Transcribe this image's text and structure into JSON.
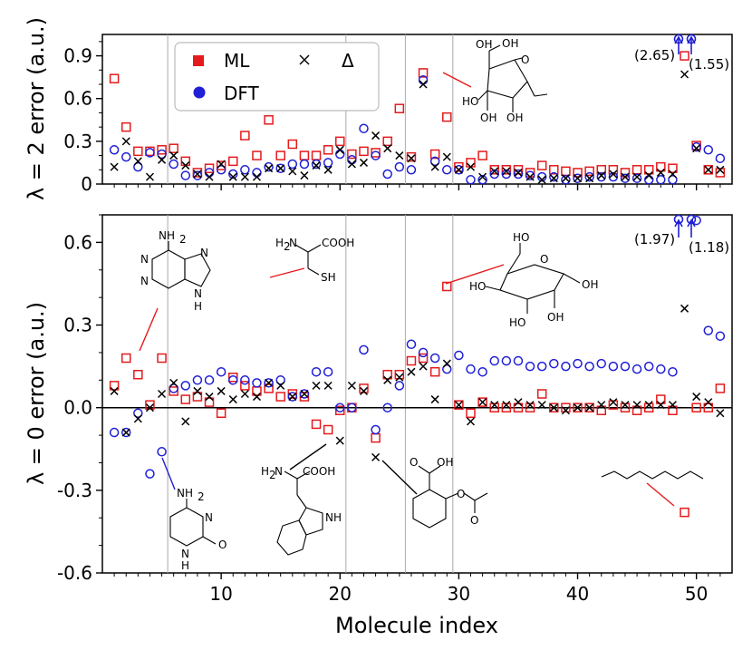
{
  "chart_data": [
    {
      "type": "scatter",
      "panel": "top",
      "ylabel": "λ = 2 error (a.u.)",
      "xlim": [
        0,
        53
      ],
      "ylim": [
        0,
        1.05
      ],
      "yticks": [
        0,
        0.3,
        0.6,
        0.9
      ],
      "ytick_labels": [
        "0",
        "0.3",
        "0.6",
        "0.9"
      ],
      "vlines": [
        5.5,
        20.5,
        25.5,
        29.5
      ],
      "legend": {
        "placement": "top-left",
        "entries": [
          {
            "label": "ML",
            "marker": "square",
            "color": "#e41a1c"
          },
          {
            "label": "Δ",
            "marker": "x",
            "color": "#000000"
          },
          {
            "label": "DFT",
            "marker": "circle",
            "color": "#1f1fd6"
          }
        ]
      },
      "offscale": [
        {
          "x": 49,
          "label": "(2.65)"
        },
        {
          "x": 50,
          "label": "(1.55)"
        }
      ],
      "series": [
        {
          "name": "ML",
          "marker": "square",
          "color": "#e41a1c",
          "x": [
            1,
            2,
            3,
            4,
            5,
            6,
            7,
            8,
            9,
            10,
            11,
            12,
            13,
            14,
            15,
            16,
            17,
            18,
            19,
            20,
            21,
            22,
            23,
            24,
            25,
            26,
            27,
            28,
            29,
            30,
            31,
            32,
            33,
            34,
            35,
            36,
            37,
            38,
            39,
            40,
            41,
            42,
            43,
            44,
            45,
            46,
            47,
            48,
            49,
            50,
            51,
            52
          ],
          "y": [
            0.74,
            0.4,
            0.23,
            0.23,
            0.24,
            0.25,
            0.16,
            0.08,
            0.11,
            0.13,
            0.16,
            0.34,
            0.2,
            0.45,
            0.2,
            0.28,
            0.2,
            0.2,
            0.24,
            0.3,
            0.21,
            0.23,
            0.22,
            0.3,
            0.53,
            0.19,
            0.78,
            0.21,
            0.47,
            0.12,
            0.15,
            0.2,
            0.1,
            0.1,
            0.1,
            0.08,
            0.13,
            0.1,
            0.09,
            0.08,
            0.09,
            0.1,
            0.1,
            0.08,
            0.1,
            0.1,
            0.12,
            0.11,
            0.9,
            0.27,
            0.1,
            0.08
          ]
        },
        {
          "name": "DFT",
          "marker": "circle",
          "color": "#1f1fd6",
          "x": [
            1,
            2,
            3,
            4,
            5,
            6,
            7,
            8,
            9,
            10,
            11,
            12,
            13,
            14,
            15,
            16,
            17,
            18,
            19,
            20,
            21,
            22,
            23,
            24,
            25,
            26,
            27,
            28,
            29,
            30,
            31,
            32,
            33,
            34,
            35,
            36,
            37,
            38,
            39,
            40,
            41,
            42,
            43,
            44,
            45,
            46,
            47,
            48,
            50,
            51,
            52
          ],
          "y": [
            0.24,
            0.19,
            0.12,
            0.22,
            0.21,
            0.14,
            0.06,
            0.06,
            0.08,
            0.1,
            0.07,
            0.1,
            0.08,
            0.12,
            0.11,
            0.14,
            0.14,
            0.14,
            0.15,
            0.21,
            0.17,
            0.39,
            0.2,
            0.07,
            0.12,
            0.1,
            0.73,
            0.16,
            0.1,
            0.1,
            0.03,
            0.03,
            0.07,
            0.07,
            0.07,
            0.06,
            0.05,
            0.05,
            0.03,
            0.04,
            0.05,
            0.05,
            0.05,
            0.04,
            0.04,
            0.03,
            0.03,
            0.03,
            0.26,
            0.24,
            0.18
          ]
        },
        {
          "name": "Δ",
          "marker": "x",
          "color": "#000000",
          "x": [
            1,
            2,
            3,
            4,
            5,
            6,
            7,
            8,
            9,
            10,
            11,
            12,
            13,
            14,
            15,
            16,
            17,
            18,
            19,
            20,
            21,
            22,
            23,
            24,
            25,
            26,
            27,
            28,
            29,
            30,
            31,
            32,
            33,
            34,
            35,
            36,
            37,
            38,
            39,
            40,
            41,
            42,
            43,
            44,
            45,
            46,
            47,
            48,
            49,
            50,
            51,
            52
          ],
          "y": [
            0.12,
            0.3,
            0.16,
            0.05,
            0.17,
            0.2,
            0.13,
            0.07,
            0.05,
            0.14,
            0.05,
            0.05,
            0.05,
            0.11,
            0.11,
            0.09,
            0.06,
            0.13,
            0.1,
            0.24,
            0.14,
            0.15,
            0.34,
            0.25,
            0.2,
            0.18,
            0.7,
            0.12,
            0.19,
            0.1,
            0.12,
            0.05,
            0.09,
            0.09,
            0.08,
            0.05,
            0.03,
            0.04,
            0.04,
            0.04,
            0.04,
            0.06,
            0.07,
            0.05,
            0.05,
            0.06,
            0.08,
            0.07,
            0.77,
            0.25,
            0.1,
            0.1
          ]
        }
      ]
    },
    {
      "type": "scatter",
      "panel": "bottom",
      "ylabel": "λ = 0 error (a.u.)",
      "xlabel": "Molecule index",
      "xlim": [
        0,
        53
      ],
      "ylim": [
        -0.6,
        0.7
      ],
      "xticks": [
        10,
        20,
        30,
        40,
        50
      ],
      "xtick_labels": [
        "10",
        "20",
        "30",
        "40",
        "50"
      ],
      "yticks": [
        -0.6,
        -0.3,
        0,
        0.3,
        0.6
      ],
      "ytick_labels": [
        "-0.6",
        "-0.3",
        "0.0",
        "0.3",
        "0.6"
      ],
      "zero_line": true,
      "vlines": [
        5.5,
        20.5,
        25.5,
        29.5
      ],
      "offscale": [
        {
          "x": 49,
          "label": "(1.97)"
        },
        {
          "x": 50,
          "label": "(1.18)"
        }
      ],
      "series": [
        {
          "name": "ML",
          "marker": "square",
          "color": "#e41a1c",
          "x": [
            1,
            2,
            3,
            4,
            5,
            6,
            7,
            8,
            9,
            10,
            11,
            12,
            13,
            14,
            15,
            16,
            17,
            18,
            19,
            20,
            21,
            22,
            23,
            24,
            25,
            26,
            27,
            28,
            29,
            30,
            31,
            32,
            33,
            34,
            35,
            36,
            37,
            38,
            39,
            40,
            41,
            42,
            43,
            44,
            45,
            46,
            47,
            48,
            49,
            50,
            51,
            52
          ],
          "y": [
            0.08,
            0.18,
            0.12,
            0.01,
            0.18,
            0.06,
            0.03,
            0.04,
            0.02,
            -0.02,
            0.11,
            0.08,
            0.06,
            0.07,
            0.04,
            0.05,
            0.04,
            -0.06,
            -0.08,
            -0.01,
            0.0,
            0.07,
            -0.11,
            0.12,
            0.12,
            0.17,
            0.18,
            0.13,
            0.44,
            0.01,
            -0.02,
            0.02,
            0.0,
            0.0,
            0.0,
            0.0,
            0.05,
            0.0,
            0.0,
            0.0,
            0.0,
            -0.01,
            0.01,
            0.0,
            -0.01,
            0.0,
            0.03,
            -0.01,
            -0.38,
            0.0,
            0.0,
            0.07
          ]
        },
        {
          "name": "DFT",
          "marker": "circle",
          "color": "#1f1fd6",
          "x": [
            1,
            2,
            3,
            4,
            5,
            6,
            7,
            8,
            9,
            10,
            11,
            12,
            13,
            14,
            15,
            16,
            17,
            18,
            19,
            20,
            21,
            22,
            23,
            24,
            25,
            26,
            27,
            28,
            29,
            30,
            31,
            32,
            33,
            34,
            35,
            36,
            37,
            38,
            39,
            40,
            41,
            42,
            43,
            44,
            45,
            46,
            47,
            48,
            50,
            51,
            52
          ],
          "y": [
            -0.09,
            -0.09,
            -0.02,
            -0.24,
            -0.16,
            0.07,
            0.08,
            0.1,
            0.1,
            0.13,
            0.1,
            0.1,
            0.09,
            0.09,
            0.1,
            0.04,
            0.05,
            0.13,
            0.13,
            0.0,
            0.0,
            0.21,
            -0.08,
            0.0,
            0.08,
            0.23,
            0.2,
            0.18,
            0.14,
            0.19,
            0.14,
            0.13,
            0.17,
            0.17,
            0.17,
            0.15,
            0.15,
            0.16,
            0.15,
            0.16,
            0.15,
            0.16,
            0.15,
            0.15,
            0.14,
            0.15,
            0.14,
            0.13,
            0.68,
            0.28,
            0.26
          ]
        },
        {
          "name": "Δ",
          "marker": "x",
          "color": "#000000",
          "x": [
            1,
            2,
            3,
            4,
            5,
            6,
            7,
            8,
            9,
            10,
            11,
            12,
            13,
            14,
            15,
            16,
            17,
            18,
            19,
            20,
            21,
            22,
            23,
            24,
            25,
            26,
            27,
            28,
            29,
            30,
            31,
            32,
            33,
            34,
            35,
            36,
            37,
            38,
            39,
            40,
            41,
            42,
            43,
            44,
            45,
            46,
            47,
            48,
            49,
            50,
            51,
            52
          ],
          "y": [
            0.06,
            -0.09,
            -0.04,
            0.0,
            0.05,
            0.09,
            -0.05,
            0.06,
            0.04,
            0.06,
            0.03,
            0.05,
            0.04,
            0.09,
            0.08,
            0.04,
            0.05,
            0.08,
            0.08,
            -0.12,
            0.08,
            0.06,
            -0.18,
            0.1,
            0.11,
            0.13,
            0.15,
            0.03,
            0.16,
            0.01,
            -0.05,
            0.02,
            0.01,
            0.01,
            0.02,
            0.01,
            0.01,
            0.0,
            -0.01,
            0.0,
            0.0,
            0.01,
            0.02,
            0.01,
            0.01,
            0.01,
            0.01,
            0.01,
            0.36,
            0.04,
            0.02,
            -0.02
          ]
        }
      ]
    }
  ],
  "molecules": {
    "top_sugar": {
      "labels": [
        "OH",
        "OH",
        "O",
        "HO",
        "OH",
        "OH"
      ]
    },
    "adenine": {
      "labels": [
        "NH",
        "2",
        "N",
        "N",
        "N",
        "N",
        "H"
      ]
    },
    "cysteine": {
      "labels": [
        "H",
        "2",
        "N",
        "COOH",
        "SH"
      ]
    },
    "glucose": {
      "labels": [
        "HO",
        "O",
        "HO",
        "HO",
        "OH",
        "OH"
      ]
    },
    "cytosine": {
      "labels": [
        "NH",
        "2",
        "N",
        "N",
        "H",
        "O"
      ]
    },
    "tryptophan": {
      "labels": [
        "H",
        "2",
        "N",
        "COOH",
        "NH"
      ]
    },
    "aspirin": {
      "labels": [
        "O",
        "OH",
        "O",
        "O"
      ]
    }
  }
}
